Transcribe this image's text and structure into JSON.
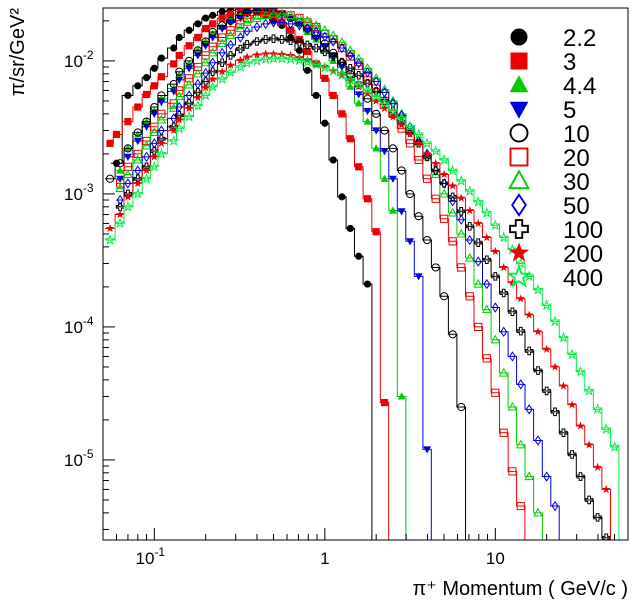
{
  "chart_data": {
    "type": "line",
    "style": "step-histogram with markers",
    "xscale": "log",
    "yscale": "log",
    "xlim": [
      0.05,
      60
    ],
    "ylim": [
      2.5e-06,
      0.025
    ],
    "xlabel": "π⁺ Momentum ( GeV/c )",
    "ylabel": "π/sr/GeV²",
    "x_ticks": [
      {
        "value": 0.1,
        "label": "10",
        "exp": "-1"
      },
      {
        "value": 1,
        "label": "1",
        "exp": ""
      },
      {
        "value": 10,
        "label": "10",
        "exp": ""
      }
    ],
    "y_ticks": [
      {
        "value": 1e-05,
        "label": "10",
        "exp": "-5"
      },
      {
        "value": 0.0001,
        "label": "10",
        "exp": "-4"
      },
      {
        "value": 0.001,
        "label": "10",
        "exp": "-3"
      },
      {
        "value": 0.01,
        "label": "10",
        "exp": "-2"
      }
    ],
    "legend_position": "top-right",
    "series": [
      {
        "name": "2.2",
        "marker": "circle-filled",
        "color": "#000000",
        "x": [
          0.06,
          0.07,
          0.08,
          0.09,
          0.1,
          0.11,
          0.13,
          0.14,
          0.16,
          0.18,
          0.2,
          0.22,
          0.25,
          0.28,
          0.32,
          0.35,
          0.4,
          0.45,
          0.5,
          0.56,
          0.63,
          0.71,
          0.79,
          0.89,
          1.0,
          1.12,
          1.26,
          1.41,
          1.58,
          1.78
        ],
        "y": [
          0.0017,
          0.0055,
          0.0065,
          0.0075,
          0.0088,
          0.0105,
          0.0125,
          0.015,
          0.017,
          0.019,
          0.021,
          0.022,
          0.0235,
          0.024,
          0.0245,
          0.024,
          0.0235,
          0.022,
          0.02,
          0.0185,
          0.015,
          0.012,
          0.0085,
          0.0055,
          0.0034,
          0.0018,
          0.00095,
          0.00055,
          0.00034,
          0.00021
        ]
      },
      {
        "name": "3",
        "marker": "square-filled",
        "color": "#ee0000",
        "x": [
          0.055,
          0.06,
          0.07,
          0.08,
          0.09,
          0.1,
          0.11,
          0.13,
          0.14,
          0.16,
          0.18,
          0.2,
          0.22,
          0.25,
          0.28,
          0.32,
          0.35,
          0.4,
          0.45,
          0.5,
          0.56,
          0.63,
          0.71,
          0.79,
          0.89,
          1.0,
          1.12,
          1.26,
          1.41,
          1.58,
          1.78,
          2.0,
          2.24
        ],
        "y": [
          0.0024,
          0.0028,
          0.0035,
          0.0045,
          0.0056,
          0.0065,
          0.0076,
          0.0095,
          0.011,
          0.013,
          0.015,
          0.0175,
          0.019,
          0.021,
          0.0225,
          0.0235,
          0.024,
          0.0235,
          0.0225,
          0.0215,
          0.0195,
          0.017,
          0.0145,
          0.0118,
          0.0095,
          0.0074,
          0.0055,
          0.004,
          0.0026,
          0.0016,
          0.00092,
          0.00052,
          2.7e-05
        ]
      },
      {
        "name": "4.4",
        "marker": "triangle-up-filled",
        "color": "#00cc00",
        "x": [
          0.063,
          0.07,
          0.08,
          0.09,
          0.1,
          0.11,
          0.13,
          0.14,
          0.16,
          0.18,
          0.2,
          0.22,
          0.25,
          0.28,
          0.32,
          0.35,
          0.4,
          0.45,
          0.5,
          0.56,
          0.63,
          0.71,
          0.79,
          0.89,
          1.0,
          1.12,
          1.26,
          1.41,
          1.58,
          1.78,
          2.0,
          2.24,
          2.51,
          2.82
        ],
        "y": [
          0.0015,
          0.0022,
          0.0028,
          0.0035,
          0.0042,
          0.0052,
          0.0062,
          0.0078,
          0.0095,
          0.012,
          0.014,
          0.016,
          0.018,
          0.0205,
          0.022,
          0.0235,
          0.024,
          0.0245,
          0.024,
          0.023,
          0.021,
          0.019,
          0.0165,
          0.0145,
          0.0122,
          0.01,
          0.0082,
          0.0064,
          0.0048,
          0.0035,
          0.0022,
          0.0013,
          0.00075,
          3e-05
        ]
      },
      {
        "name": "5",
        "marker": "triangle-down-filled",
        "color": "#0000dd",
        "x": [
          0.063,
          0.07,
          0.08,
          0.09,
          0.1,
          0.11,
          0.13,
          0.14,
          0.16,
          0.18,
          0.2,
          0.22,
          0.25,
          0.28,
          0.32,
          0.35,
          0.4,
          0.45,
          0.5,
          0.56,
          0.63,
          0.71,
          0.79,
          0.89,
          1.0,
          1.12,
          1.26,
          1.41,
          1.58,
          1.78,
          2.0,
          2.24,
          2.51,
          2.82,
          3.16,
          3.55,
          3.98
        ],
        "y": [
          0.0013,
          0.0019,
          0.0025,
          0.0032,
          0.004,
          0.0049,
          0.0059,
          0.0072,
          0.0088,
          0.011,
          0.013,
          0.015,
          0.0175,
          0.0195,
          0.021,
          0.023,
          0.024,
          0.024,
          0.0235,
          0.0225,
          0.021,
          0.019,
          0.017,
          0.0148,
          0.0128,
          0.0108,
          0.009,
          0.0072,
          0.0056,
          0.0042,
          0.003,
          0.0021,
          0.0013,
          0.00074,
          0.00044,
          0.00024,
          1.2e-05
        ]
      },
      {
        "name": "10",
        "marker": "circle-open",
        "color": "#000000",
        "x": [
          0.055,
          0.063,
          0.07,
          0.08,
          0.09,
          0.1,
          0.11,
          0.13,
          0.14,
          0.16,
          0.18,
          0.2,
          0.22,
          0.25,
          0.28,
          0.32,
          0.35,
          0.4,
          0.45,
          0.5,
          0.56,
          0.63,
          0.71,
          0.79,
          0.89,
          1.0,
          1.12,
          1.26,
          1.41,
          1.58,
          1.78,
          2.0,
          2.24,
          2.51,
          2.82,
          3.16,
          3.55,
          3.98,
          4.47,
          5.01,
          5.62,
          6.31
        ],
        "y": [
          0.0013,
          0.0017,
          0.0022,
          0.0029,
          0.0035,
          0.0045,
          0.0055,
          0.0067,
          0.0083,
          0.01,
          0.012,
          0.014,
          0.0165,
          0.0185,
          0.02,
          0.022,
          0.023,
          0.024,
          0.024,
          0.0235,
          0.0225,
          0.021,
          0.0195,
          0.0175,
          0.0155,
          0.0135,
          0.0115,
          0.0097,
          0.008,
          0.0066,
          0.0052,
          0.004,
          0.003,
          0.0022,
          0.0015,
          0.001,
          0.00068,
          0.00045,
          0.00028,
          0.00017,
          8.8e-05,
          2.5e-05
        ]
      },
      {
        "name": "20",
        "marker": "square-open",
        "color": "#ee0000",
        "x": [
          0.063,
          0.07,
          0.08,
          0.09,
          0.1,
          0.11,
          0.13,
          0.14,
          0.16,
          0.18,
          0.2,
          0.22,
          0.25,
          0.28,
          0.32,
          0.35,
          0.4,
          0.45,
          0.5,
          0.56,
          0.63,
          0.71,
          0.79,
          0.89,
          1.0,
          1.12,
          1.26,
          1.41,
          1.58,
          1.78,
          2.0,
          2.24,
          2.51,
          2.82,
          3.16,
          3.55,
          3.98,
          4.47,
          5.01,
          5.62,
          6.31,
          7.08,
          7.94,
          8.91,
          10.0,
          11.2,
          12.6,
          14.1
        ],
        "y": [
          0.0012,
          0.0016,
          0.002,
          0.0025,
          0.0032,
          0.004,
          0.0048,
          0.006,
          0.0074,
          0.009,
          0.011,
          0.0128,
          0.015,
          0.017,
          0.019,
          0.021,
          0.022,
          0.023,
          0.023,
          0.0225,
          0.022,
          0.021,
          0.0195,
          0.018,
          0.016,
          0.0145,
          0.0125,
          0.0108,
          0.0092,
          0.0076,
          0.0062,
          0.005,
          0.004,
          0.0031,
          0.0024,
          0.0018,
          0.0013,
          0.00092,
          0.00065,
          0.00044,
          0.00028,
          0.00017,
          0.0001,
          5.8e-05,
          3.2e-05,
          1.6e-05,
          8.2e-06,
          4.5e-06
        ]
      },
      {
        "name": "30",
        "marker": "triangle-up-open",
        "color": "#00cc00",
        "x": [
          0.063,
          0.07,
          0.08,
          0.09,
          0.1,
          0.11,
          0.13,
          0.14,
          0.16,
          0.18,
          0.2,
          0.22,
          0.25,
          0.28,
          0.32,
          0.35,
          0.4,
          0.45,
          0.5,
          0.56,
          0.63,
          0.71,
          0.79,
          0.89,
          1.0,
          1.12,
          1.26,
          1.41,
          1.58,
          1.78,
          2.0,
          2.24,
          2.51,
          2.82,
          3.16,
          3.55,
          3.98,
          4.47,
          5.01,
          5.62,
          6.31,
          7.08,
          7.94,
          8.91,
          10.0,
          11.2,
          12.6,
          14.1,
          15.8,
          17.8
        ],
        "y": [
          0.0011,
          0.0014,
          0.0018,
          0.0023,
          0.0029,
          0.0036,
          0.0044,
          0.0054,
          0.0066,
          0.008,
          0.0097,
          0.0115,
          0.0135,
          0.0155,
          0.0175,
          0.0195,
          0.0208,
          0.022,
          0.0225,
          0.0225,
          0.022,
          0.021,
          0.02,
          0.0185,
          0.017,
          0.0155,
          0.0138,
          0.012,
          0.0104,
          0.0088,
          0.0074,
          0.0061,
          0.005,
          0.004,
          0.0032,
          0.0025,
          0.0019,
          0.0014,
          0.001,
          0.00072,
          0.0005,
          0.00033,
          0.00021,
          0.000135,
          8e-05,
          4.5e-05,
          2.5e-05,
          1.3e-05,
          7.5e-06,
          4e-06
        ]
      },
      {
        "name": "50",
        "marker": "diamond-open",
        "color": "#0000dd",
        "x": [
          0.063,
          0.07,
          0.08,
          0.09,
          0.1,
          0.11,
          0.13,
          0.14,
          0.16,
          0.18,
          0.2,
          0.22,
          0.25,
          0.28,
          0.32,
          0.35,
          0.4,
          0.45,
          0.5,
          0.56,
          0.63,
          0.71,
          0.79,
          0.89,
          1.0,
          1.12,
          1.26,
          1.41,
          1.58,
          1.78,
          2.0,
          2.24,
          2.51,
          2.82,
          3.16,
          3.55,
          3.98,
          4.47,
          5.01,
          5.62,
          6.31,
          7.08,
          7.94,
          8.91,
          10.0,
          11.2,
          12.6,
          14.1,
          15.8,
          17.8,
          20.0,
          22.4
        ],
        "y": [
          0.0009,
          0.0012,
          0.0015,
          0.0019,
          0.0024,
          0.003,
          0.0037,
          0.0045,
          0.0055,
          0.0067,
          0.0081,
          0.0097,
          0.0115,
          0.0132,
          0.015,
          0.0167,
          0.018,
          0.019,
          0.0195,
          0.0195,
          0.019,
          0.0185,
          0.0175,
          0.0165,
          0.0152,
          0.014,
          0.0125,
          0.011,
          0.0096,
          0.0082,
          0.007,
          0.0058,
          0.0048,
          0.0039,
          0.0032,
          0.0025,
          0.002,
          0.0015,
          0.0012,
          0.00088,
          0.00064,
          0.00045,
          0.00031,
          0.00021,
          0.00014,
          9.2e-05,
          6e-05,
          3.7e-05,
          2.4e-05,
          1.4e-05,
          7.5e-06,
          4.5e-06
        ]
      },
      {
        "name": "100",
        "marker": "cross-open",
        "color": "#000000",
        "x": [
          0.063,
          0.07,
          0.08,
          0.09,
          0.1,
          0.11,
          0.13,
          0.14,
          0.16,
          0.18,
          0.2,
          0.22,
          0.25,
          0.28,
          0.32,
          0.35,
          0.4,
          0.45,
          0.5,
          0.56,
          0.63,
          0.71,
          0.79,
          0.89,
          1.0,
          1.12,
          1.26,
          1.41,
          1.58,
          1.78,
          2.0,
          2.24,
          2.51,
          2.82,
          3.16,
          3.55,
          3.98,
          4.47,
          5.01,
          5.62,
          6.31,
          7.08,
          7.94,
          8.91,
          10.0,
          11.2,
          12.6,
          14.1,
          15.8,
          17.8,
          20.0,
          22.4,
          25.1,
          28.2,
          31.6,
          35.5,
          39.8,
          44.7
        ],
        "y": [
          0.0008,
          0.001,
          0.0013,
          0.0016,
          0.0021,
          0.0026,
          0.0032,
          0.0039,
          0.0048,
          0.0058,
          0.007,
          0.0083,
          0.0097,
          0.011,
          0.0123,
          0.0133,
          0.014,
          0.0145,
          0.0147,
          0.0145,
          0.0142,
          0.0138,
          0.0132,
          0.0125,
          0.0117,
          0.0108,
          0.0098,
          0.0088,
          0.0078,
          0.0068,
          0.0059,
          0.005,
          0.0042,
          0.0035,
          0.0029,
          0.0024,
          0.0019,
          0.0015,
          0.0012,
          0.00095,
          0.00074,
          0.00057,
          0.00043,
          0.00032,
          0.00024,
          0.00018,
          0.00013,
          9.3e-05,
          6.6e-05,
          4.7e-05,
          3.3e-05,
          2.3e-05,
          1.6e-05,
          1.1e-05,
          7.5e-06,
          5e-06,
          3.7e-06,
          2.6e-06
        ]
      },
      {
        "name": "200",
        "marker": "star-filled",
        "color": "#ee0000",
        "x": [
          0.055,
          0.063,
          0.07,
          0.08,
          0.09,
          0.1,
          0.11,
          0.13,
          0.14,
          0.16,
          0.18,
          0.2,
          0.22,
          0.25,
          0.28,
          0.32,
          0.35,
          0.4,
          0.45,
          0.5,
          0.56,
          0.63,
          0.71,
          0.79,
          0.89,
          1.0,
          1.12,
          1.26,
          1.41,
          1.58,
          1.78,
          2.0,
          2.24,
          2.51,
          2.82,
          3.16,
          3.55,
          3.98,
          4.47,
          5.01,
          5.62,
          6.31,
          7.08,
          7.94,
          8.91,
          10.0,
          11.2,
          12.6,
          14.1,
          15.8,
          17.8,
          20.0,
          22.4,
          25.1,
          28.2,
          31.6,
          35.5,
          39.8,
          44.7
        ],
        "y": [
          0.00055,
          0.0007,
          0.00095,
          0.0012,
          0.0015,
          0.0019,
          0.0024,
          0.003,
          0.0036,
          0.0044,
          0.0053,
          0.0063,
          0.0073,
          0.0083,
          0.0093,
          0.0101,
          0.0107,
          0.0111,
          0.0113,
          0.0113,
          0.0112,
          0.011,
          0.0106,
          0.0102,
          0.0097,
          0.0091,
          0.0085,
          0.0078,
          0.0071,
          0.0064,
          0.0057,
          0.005,
          0.0044,
          0.0038,
          0.0033,
          0.0028,
          0.0024,
          0.002,
          0.0017,
          0.0014,
          0.00115,
          0.00093,
          0.00075,
          0.0006,
          0.00047,
          0.00037,
          0.00028,
          0.000215,
          0.000163,
          0.000123,
          9.2e-05,
          6.8e-05,
          5e-05,
          3.6e-05,
          2.6e-05,
          1.8e-05,
          1.3e-05,
          8.8e-06,
          6e-06
        ]
      },
      {
        "name": "400",
        "marker": "star-open",
        "color": "#00ee44",
        "x": [
          0.055,
          0.063,
          0.07,
          0.08,
          0.09,
          0.1,
          0.11,
          0.13,
          0.14,
          0.16,
          0.18,
          0.2,
          0.22,
          0.25,
          0.28,
          0.32,
          0.35,
          0.4,
          0.45,
          0.5,
          0.56,
          0.63,
          0.71,
          0.79,
          0.89,
          1.0,
          1.12,
          1.26,
          1.41,
          1.58,
          1.78,
          2.0,
          2.24,
          2.51,
          2.82,
          3.16,
          3.55,
          3.98,
          4.47,
          5.01,
          5.62,
          6.31,
          7.08,
          7.94,
          8.91,
          10.0,
          11.2,
          12.6,
          14.1,
          15.8,
          17.8,
          20.0,
          22.4,
          25.1,
          28.2,
          31.6,
          35.5,
          39.8,
          44.7,
          50.1
        ],
        "y": [
          0.00045,
          0.0006,
          0.0008,
          0.001,
          0.0013,
          0.0016,
          0.002,
          0.0025,
          0.0031,
          0.0038,
          0.0046,
          0.0055,
          0.0064,
          0.0073,
          0.0082,
          0.009,
          0.0096,
          0.01,
          0.0103,
          0.0104,
          0.0104,
          0.0103,
          0.0101,
          0.0098,
          0.0094,
          0.0089,
          0.0084,
          0.0078,
          0.0072,
          0.0066,
          0.006,
          0.0054,
          0.0048,
          0.0042,
          0.0037,
          0.0032,
          0.0028,
          0.0024,
          0.0021,
          0.0018,
          0.0015,
          0.00125,
          0.00105,
          0.00087,
          0.00072,
          0.00058,
          0.00047,
          0.00038,
          0.0003,
          0.00024,
          0.00019,
          0.000145,
          0.00011,
          8.3e-05,
          6.2e-05,
          4.6e-05,
          3.3e-05,
          2.4e-05,
          1.7e-05,
          1.25e-05
        ]
      }
    ]
  }
}
